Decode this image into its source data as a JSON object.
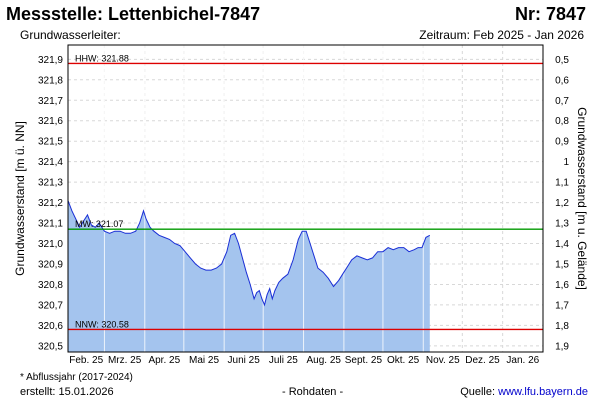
{
  "header": {
    "title": "Messstelle: Lettenbichel-7847",
    "nr": "Nr: 7847",
    "aquifer": "Grundwasserleiter:",
    "period": "Zeitraum: Feb 2025 - Jan 2026"
  },
  "footer": {
    "note": "* Abflussjahr (2017-2024)",
    "created": "erstellt:  15.01.2026",
    "raw": "- Rohdaten -",
    "source_prefix": "Quelle: ",
    "source_url": "www.lfu.bayern.de"
  },
  "colors": {
    "fill": "#a4c4ee",
    "line": "#1a2fd6",
    "hhw": "#dd0000",
    "nnw": "#dd0000",
    "mw": "#009900",
    "grid": "#d8d8d8"
  },
  "chart_data": {
    "type": "area",
    "title": "Messstelle: Lettenbichel-7847",
    "ylabel": "Grundwasserstand [m ü. NN]",
    "ylabel_right": "Grundwasserstand [m u. Gelände]",
    "ylim": [
      320.47,
      321.97
    ],
    "ylim_right_reference": 322.4,
    "y_ticks": [
      320.5,
      320.6,
      320.7,
      320.8,
      320.9,
      321.0,
      321.1,
      321.2,
      321.3,
      321.4,
      321.5,
      321.6,
      321.7,
      321.8,
      321.9
    ],
    "y_tick_labels": [
      "320,5",
      "320,6",
      "320,7",
      "320,8",
      "320,9",
      "321,0",
      "321,1",
      "321,2",
      "321,3",
      "321,4",
      "321,5",
      "321,6",
      "321,7",
      "321,8",
      "321,9"
    ],
    "y_right_ticks": [
      0.5,
      0.6,
      0.7,
      0.8,
      0.9,
      1.0,
      1.1,
      1.2,
      1.3,
      1.4,
      1.5,
      1.6,
      1.7,
      1.8,
      1.9
    ],
    "y_right_tick_labels": [
      "0,5",
      "0,6",
      "0,7",
      "0,8",
      "0,9",
      "1",
      "1,1",
      "1,2",
      "1,3",
      "1,4",
      "1,5",
      "1,6",
      "1,7",
      "1,8",
      "1,9"
    ],
    "xlim": [
      "2025-02-01",
      "2026-02-01"
    ],
    "x_ticks": [
      "2025-02-01",
      "2025-03-01",
      "2025-04-01",
      "2025-05-01",
      "2025-06-01",
      "2025-07-01",
      "2025-08-01",
      "2025-09-01",
      "2025-10-01",
      "2025-11-01",
      "2025-12-01",
      "2026-01-01"
    ],
    "x_tick_labels": [
      "Feb. 25",
      "Mrz. 25",
      "Apr. 25",
      "Mai 25",
      "Juni 25",
      "Juli 25",
      "Aug. 25",
      "Sept. 25",
      "Okt. 25",
      "Nov. 25",
      "Dez. 25",
      "Jan. 26"
    ],
    "reference_lines": [
      {
        "label": "HHW: 321.88",
        "value": 321.88,
        "color": "#dd0000"
      },
      {
        "label": "MW: 321.07",
        "value": 321.07,
        "color": "#009900"
      },
      {
        "label": "NNW: 320.58",
        "value": 320.58,
        "color": "#dd0000"
      }
    ],
    "series": [
      {
        "x": [
          "2025-02-01",
          "2025-02-04",
          "2025-02-07",
          "2025-02-10",
          "2025-02-13",
          "2025-02-16",
          "2025-02-19",
          "2025-02-22",
          "2025-02-25",
          "2025-03-01",
          "2025-03-05",
          "2025-03-09",
          "2025-03-13",
          "2025-03-17",
          "2025-03-21",
          "2025-03-25",
          "2025-03-28",
          "2025-03-31",
          "2025-04-02",
          "2025-04-05",
          "2025-04-08",
          "2025-04-12",
          "2025-04-16",
          "2025-04-20",
          "2025-04-24",
          "2025-04-28",
          "2025-05-02",
          "2025-05-06",
          "2025-05-10",
          "2025-05-14",
          "2025-05-18",
          "2025-05-22",
          "2025-05-26",
          "2025-05-30",
          "2025-06-03",
          "2025-06-06",
          "2025-06-09",
          "2025-06-12",
          "2025-06-15",
          "2025-06-18",
          "2025-06-21",
          "2025-06-24",
          "2025-06-26",
          "2025-06-28",
          "2025-06-30",
          "2025-07-02",
          "2025-07-04",
          "2025-07-06",
          "2025-07-08",
          "2025-07-10",
          "2025-07-13",
          "2025-07-16",
          "2025-07-20",
          "2025-07-24",
          "2025-07-28",
          "2025-07-31",
          "2025-08-03",
          "2025-08-06",
          "2025-08-09",
          "2025-08-12",
          "2025-08-16",
          "2025-08-20",
          "2025-08-24",
          "2025-08-28",
          "2025-08-31",
          "2025-09-03",
          "2025-09-07",
          "2025-09-11",
          "2025-09-15",
          "2025-09-19",
          "2025-09-23",
          "2025-09-27",
          "2025-10-01",
          "2025-10-05",
          "2025-10-09",
          "2025-10-13",
          "2025-10-17",
          "2025-10-21",
          "2025-10-25",
          "2025-10-28",
          "2025-10-31",
          "2025-11-03",
          "2025-11-06"
        ],
        "values": [
          321.21,
          321.16,
          321.12,
          321.08,
          321.11,
          321.14,
          321.09,
          321.08,
          321.1,
          321.06,
          321.05,
          321.06,
          321.06,
          321.05,
          321.05,
          321.06,
          321.1,
          321.16,
          321.12,
          321.08,
          321.06,
          321.04,
          321.03,
          321.02,
          321.0,
          320.99,
          320.96,
          320.93,
          320.9,
          320.88,
          320.87,
          320.87,
          320.88,
          320.9,
          320.96,
          321.04,
          321.05,
          321.0,
          320.93,
          320.86,
          320.8,
          320.73,
          320.76,
          320.77,
          320.73,
          320.7,
          320.75,
          320.78,
          320.73,
          320.77,
          320.81,
          320.83,
          320.85,
          320.92,
          321.02,
          321.06,
          321.06,
          321.0,
          320.94,
          320.88,
          320.86,
          320.83,
          320.79,
          320.82,
          320.85,
          320.88,
          320.92,
          320.94,
          320.93,
          320.92,
          320.93,
          320.96,
          320.96,
          320.98,
          320.97,
          320.98,
          320.98,
          320.96,
          320.97,
          320.98,
          320.98,
          321.03,
          321.04
        ]
      }
    ]
  }
}
